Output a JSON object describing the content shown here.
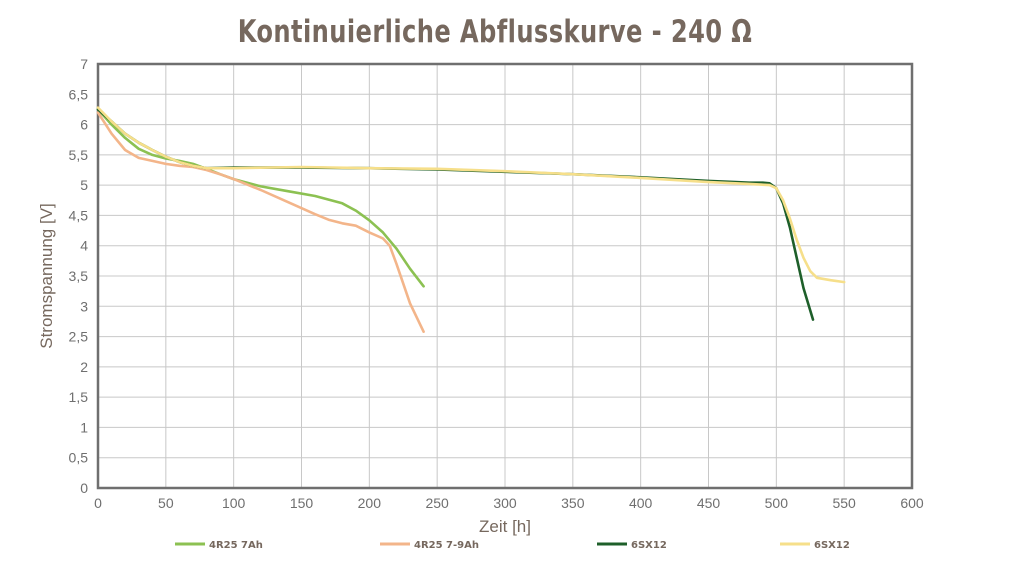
{
  "chart_data": {
    "type": "line",
    "title": "Kontinuierliche Abflusskurve - 240 Ω",
    "xlabel": "Zeit [h]",
    "ylabel": "Stromspannung [V]",
    "xlim": [
      0,
      600
    ],
    "ylim": [
      0,
      7
    ],
    "x_ticks": [
      "0",
      "50",
      "100",
      "150",
      "200",
      "250",
      "300",
      "350",
      "400",
      "450",
      "500",
      "550",
      "600"
    ],
    "y_ticks": [
      "0",
      "0,5",
      "1",
      "1,5",
      "2",
      "2,5",
      "3",
      "3,5",
      "4",
      "4,5",
      "5",
      "5,5",
      "6",
      "6,5",
      "7"
    ],
    "grid": true,
    "legend_position": "bottom",
    "series": [
      {
        "name": "4R25 7Ah",
        "color": "#8cc152",
        "x": [
          0,
          10,
          20,
          30,
          40,
          50,
          60,
          70,
          80,
          90,
          100,
          120,
          140,
          160,
          180,
          190,
          200,
          210,
          220,
          230,
          240
        ],
        "y": [
          6.25,
          6.0,
          5.78,
          5.6,
          5.5,
          5.44,
          5.4,
          5.35,
          5.27,
          5.18,
          5.1,
          4.98,
          4.9,
          4.82,
          4.7,
          4.58,
          4.42,
          4.22,
          3.95,
          3.62,
          3.33
        ]
      },
      {
        "name": "4R25 7-9Ah",
        "color": "#f3b58a",
        "x": [
          0,
          10,
          20,
          30,
          40,
          50,
          60,
          70,
          80,
          90,
          100,
          120,
          140,
          160,
          170,
          180,
          190,
          200,
          210,
          215,
          220,
          230,
          240
        ],
        "y": [
          6.2,
          5.85,
          5.58,
          5.45,
          5.4,
          5.35,
          5.32,
          5.3,
          5.25,
          5.18,
          5.1,
          4.92,
          4.72,
          4.52,
          4.43,
          4.37,
          4.33,
          4.22,
          4.12,
          4.0,
          3.7,
          3.05,
          2.58
        ]
      },
      {
        "name": "6SX12",
        "color": "#1e5f2a",
        "x": [
          0,
          10,
          20,
          30,
          40,
          50,
          60,
          70,
          80,
          100,
          150,
          200,
          250,
          300,
          350,
          400,
          450,
          470,
          480,
          490,
          495,
          500,
          505,
          510,
          515,
          520,
          527
        ],
        "y": [
          6.25,
          6.05,
          5.85,
          5.7,
          5.58,
          5.47,
          5.38,
          5.32,
          5.28,
          5.29,
          5.29,
          5.28,
          5.26,
          5.22,
          5.18,
          5.13,
          5.07,
          5.05,
          5.04,
          5.04,
          5.03,
          4.95,
          4.7,
          4.3,
          3.8,
          3.3,
          2.78
        ]
      },
      {
        "name": "6SX12",
        "color": "#f6df8a",
        "x": [
          0,
          10,
          20,
          30,
          40,
          50,
          60,
          70,
          80,
          100,
          150,
          200,
          250,
          300,
          350,
          400,
          450,
          480,
          495,
          500,
          505,
          510,
          515,
          520,
          525,
          530,
          540,
          550
        ],
        "y": [
          6.28,
          6.05,
          5.85,
          5.7,
          5.58,
          5.47,
          5.38,
          5.32,
          5.28,
          5.28,
          5.3,
          5.28,
          5.27,
          5.23,
          5.18,
          5.12,
          5.05,
          5.02,
          5.0,
          4.95,
          4.75,
          4.45,
          4.1,
          3.8,
          3.58,
          3.47,
          3.43,
          3.4
        ]
      }
    ]
  }
}
